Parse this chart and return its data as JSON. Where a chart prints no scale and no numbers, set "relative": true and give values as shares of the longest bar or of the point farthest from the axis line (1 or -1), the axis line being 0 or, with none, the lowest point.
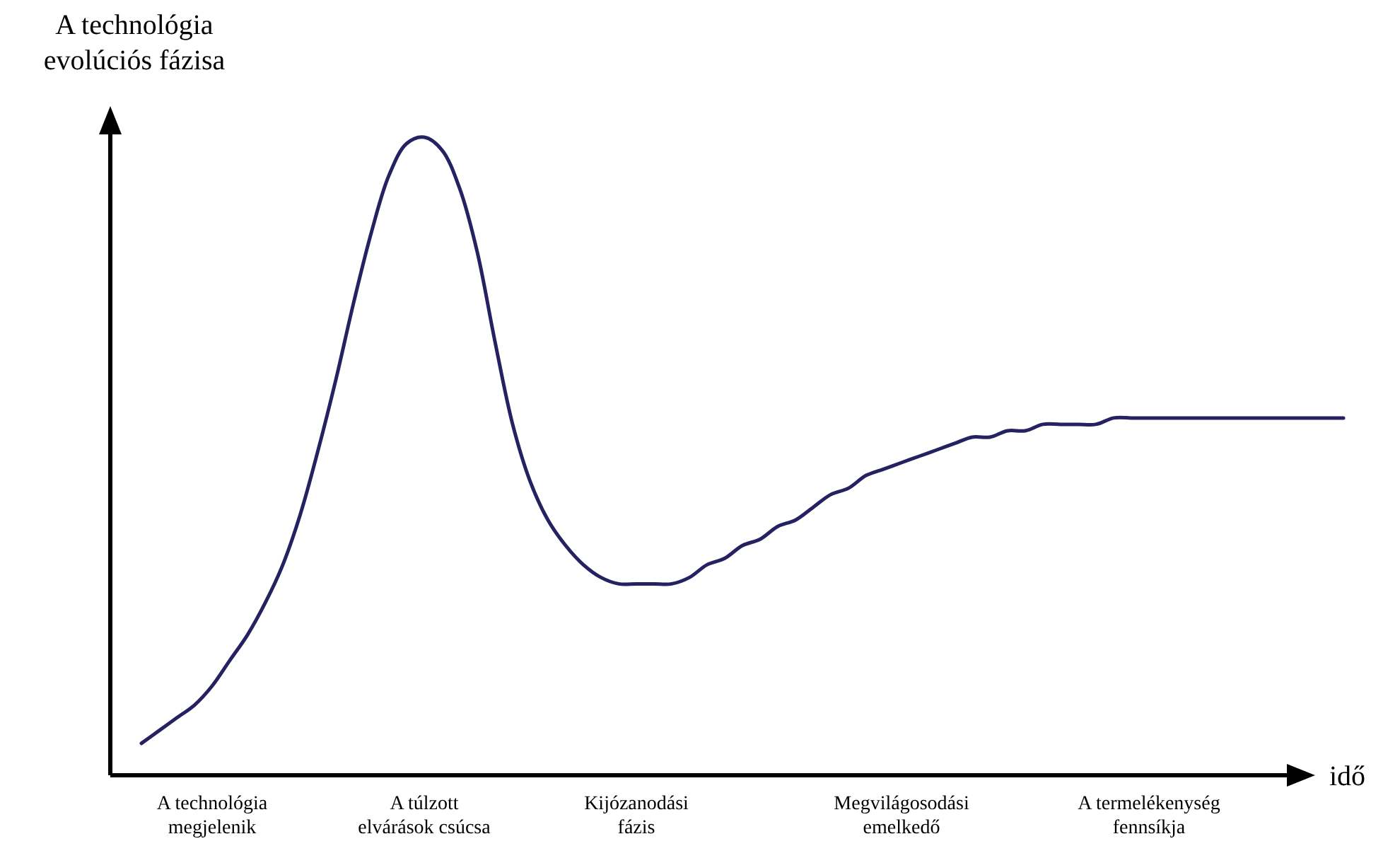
{
  "chart_data": {
    "type": "line",
    "relative": true,
    "xlabel": "idő",
    "ylabel": "A technológia evolúciós fázisa",
    "categories": [
      null,
      null,
      null,
      null,
      "A technológia megjelenik",
      null,
      null,
      null,
      null,
      null,
      null,
      null,
      null,
      null,
      null,
      null,
      "A túlzott elvárások csúcsa",
      null,
      null,
      null,
      null,
      null,
      null,
      null,
      null,
      null,
      null,
      null,
      "Kijózanodási fázis",
      null,
      null,
      null,
      null,
      null,
      null,
      null,
      null,
      null,
      null,
      null,
      null,
      null,
      null,
      "Megvilágosodási emelkedő",
      null,
      null,
      null,
      null,
      null,
      null,
      null,
      null,
      null,
      null,
      null,
      null,
      null,
      "A termelékenység fennsíkja",
      null,
      null,
      null,
      null,
      null,
      null,
      null,
      null,
      null,
      null,
      null
    ],
    "series": [
      {
        "color": "#262262",
        "values": [
          0.05,
          0.07,
          0.09,
          0.11,
          0.14,
          0.18,
          0.22,
          0.27,
          0.33,
          0.41,
          0.51,
          0.62,
          0.74,
          0.85,
          0.94,
          0.99,
          1,
          0.98,
          0.92,
          0.82,
          0.68,
          0.55,
          0.46,
          0.4,
          0.36,
          0.33,
          0.31,
          0.3,
          0.3,
          0.3,
          0.3,
          0.31,
          0.33,
          0.34,
          0.36,
          0.37,
          0.39,
          0.4,
          0.42,
          0.44,
          0.45,
          0.47,
          0.48,
          0.49,
          0.5,
          0.51,
          0.52,
          0.53,
          0.53,
          0.54,
          0.54,
          0.55,
          0.55,
          0.55,
          0.55,
          0.56,
          0.56,
          0.56,
          0.56,
          0.56,
          0.56,
          0.56,
          0.56,
          0.56,
          0.56,
          0.56,
          0.56,
          0.56,
          0.56
        ]
      }
    ],
    "marker": "none",
    "line_style": "solid"
  }
}
